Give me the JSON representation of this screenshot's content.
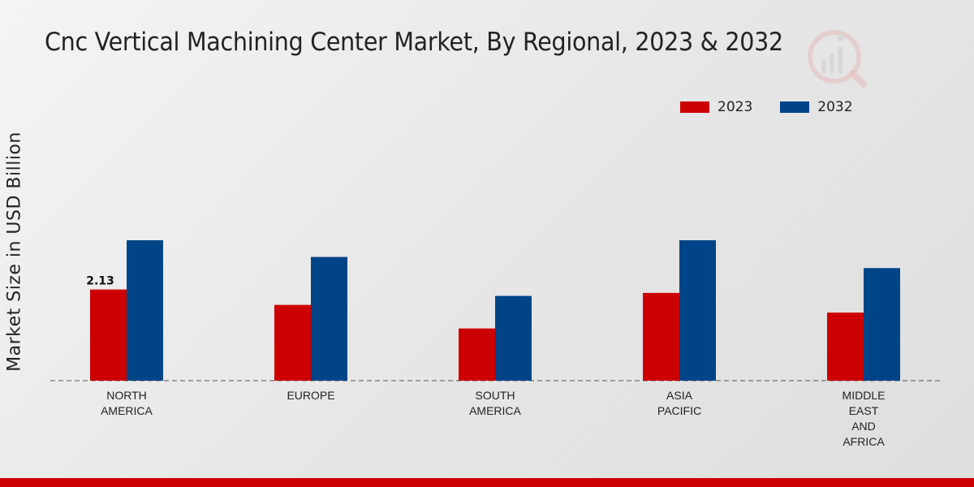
{
  "chart_data": {
    "type": "bar",
    "title": "Cnc Vertical Machining Center Market, By Regional, 2023 & 2032",
    "xlabel": "",
    "ylabel": "Market Size in USD Billion",
    "categories": [
      "NORTH\nAMERICA",
      "EUROPE",
      "SOUTH\nAMERICA",
      "ASIA\nPACIFIC",
      "MIDDLE\nEAST\nAND\nAFRICA"
    ],
    "series": [
      {
        "name": "2023",
        "color": "#cc0000",
        "values": [
          2.13,
          1.77,
          1.22,
          2.05,
          1.59
        ]
      },
      {
        "name": "2032",
        "color": "#004488",
        "values": [
          3.28,
          2.89,
          1.98,
          3.28,
          2.63
        ]
      }
    ],
    "data_labels": [
      {
        "series": 0,
        "index": 0,
        "text": "2.13"
      }
    ],
    "ylim": [
      0,
      6
    ],
    "grid": false,
    "legend_position": "top-right"
  },
  "footer_color": "#cc0000"
}
